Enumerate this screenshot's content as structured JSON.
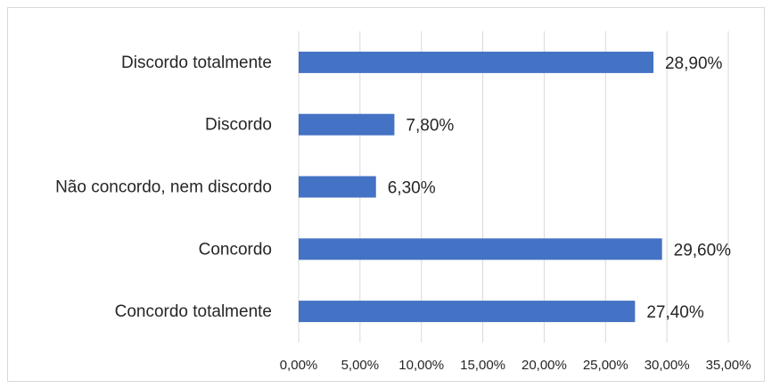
{
  "chart_data": {
    "type": "bar",
    "orientation": "horizontal",
    "categories": [
      "Discordo totalmente",
      "Discordo",
      "Não concordo, nem discordo",
      "Concordo",
      "Concordo totalmente"
    ],
    "values": [
      28.9,
      7.8,
      6.3,
      29.6,
      27.4
    ],
    "value_labels": [
      "28,90%",
      "7,80%",
      "6,30%",
      "29,60%",
      "27,40%"
    ],
    "color": "#4472c4",
    "xlim": [
      0,
      35
    ],
    "xticks": [
      {
        "value": 0,
        "label": "0,00%"
      },
      {
        "value": 5,
        "label": "5,00%"
      },
      {
        "value": 10,
        "label": "10,00%"
      },
      {
        "value": 15,
        "label": "15,00%"
      },
      {
        "value": 20,
        "label": "20,00%"
      },
      {
        "value": 25,
        "label": "25,00%"
      },
      {
        "value": 30,
        "label": "30,00%"
      },
      {
        "value": 35,
        "label": "35,00%"
      }
    ],
    "grid": true
  }
}
